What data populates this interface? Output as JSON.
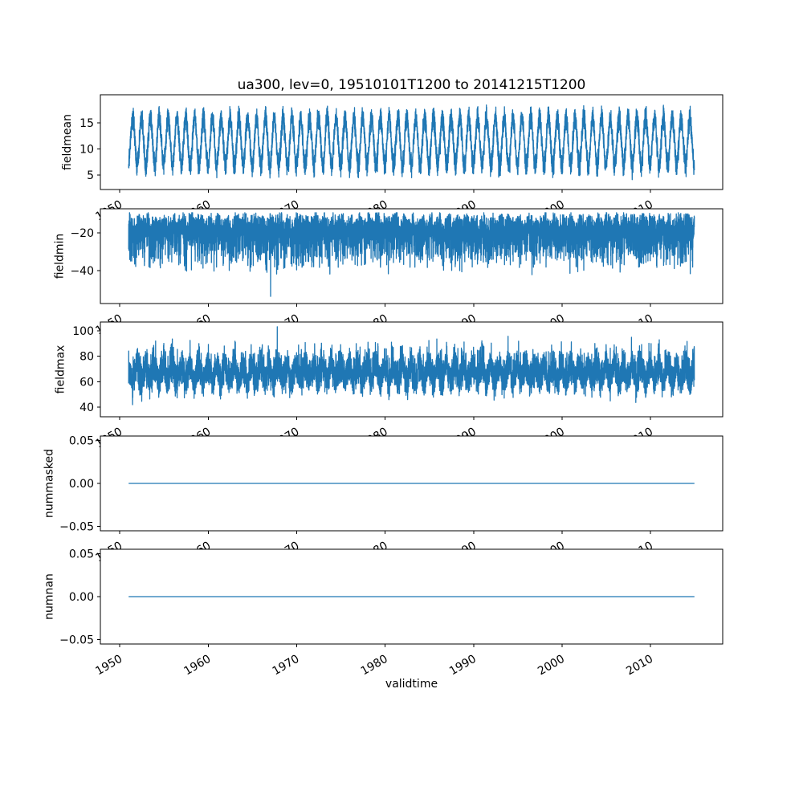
{
  "figure": {
    "title": "ua300, lev=0, 19510101T1200 to 20141215T1200",
    "xlabel": "validtime",
    "background_color": "#ffffff",
    "line_color": "#1f77b4",
    "text_color": "#000000"
  },
  "chart_data": {
    "type": "line",
    "title": "ua300, lev=0, 19510101T1200 to 20141215T1200",
    "xlabel": "validtime",
    "legend": "none",
    "grid": false,
    "x_start": 1951.0,
    "x_end": 2014.96,
    "xlim": [
      1947.8,
      2018.16
    ],
    "xticks": [
      1950,
      1960,
      1970,
      1980,
      1990,
      2000,
      2010
    ],
    "xtick_labels": [
      "1950",
      "1960",
      "1970",
      "1980",
      "1990",
      "2000",
      "2010"
    ],
    "points_per_year": 128,
    "seed": 1234,
    "subplots": [
      {
        "ylabel": "fieldmean",
        "ytick_values": [
          5,
          10,
          15
        ],
        "ytick_labels": [
          "5",
          "10",
          "15"
        ],
        "ylim": [
          2.2,
          20.4
        ],
        "series": {
          "kind": "seasonal",
          "mean": 11.4,
          "amplitude": 4.6,
          "phase": -1.3,
          "noise": 2.6,
          "clip": [
            4.0,
            18.9
          ]
        }
      },
      {
        "ylabel": "fieldmin",
        "ytick_values": [
          -20,
          -40
        ],
        "ytick_labels": [
          "−20",
          "−40"
        ],
        "ylim": [
          -57.4,
          -7.2
        ],
        "series": {
          "kind": "min-band",
          "center": -17.5,
          "half_width": 8.5,
          "seasonal": 1.5,
          "phase": 0.8,
          "tail_start": 0.72,
          "tail_scale": 60,
          "rare_prob": 0.995,
          "rare_extra": 11,
          "clip": [
            -54.5,
            -9.3
          ],
          "spike": {
            "t": 1967.05,
            "v": -53.6
          }
        }
      },
      {
        "ylabel": "fieldmax",
        "ytick_values": [
          40,
          60,
          80,
          100
        ],
        "ytick_labels": [
          "40",
          "60",
          "80",
          "100"
        ],
        "ylim": [
          32.4,
          106.9
        ],
        "series": {
          "kind": "max-band",
          "center": 66,
          "half_width": 14,
          "seasonal": 6,
          "phase": 2.0,
          "up_start": 0.8,
          "up_scale": 70,
          "down_start": 0.06,
          "down_scale": 120,
          "rare_prob": 0.997,
          "rare_extra": 5,
          "clip": [
            36.0,
            103.4
          ],
          "spike": {
            "t": 1967.8,
            "v": 103.2
          }
        }
      },
      {
        "ylabel": "nummasked",
        "ytick_values": [
          0.05,
          0,
          -0.05
        ],
        "ytick_labels": [
          "0.05",
          "0.00",
          "−0.05"
        ],
        "ylim": [
          -0.055,
          0.055
        ],
        "series": {
          "kind": "constant",
          "value": 0
        }
      },
      {
        "ylabel": "numnan",
        "ytick_values": [
          0.05,
          0,
          -0.05
        ],
        "ytick_labels": [
          "0.05",
          "0.00",
          "−0.05"
        ],
        "ylim": [
          -0.055,
          0.055
        ],
        "series": {
          "kind": "constant",
          "value": 0
        }
      }
    ]
  }
}
